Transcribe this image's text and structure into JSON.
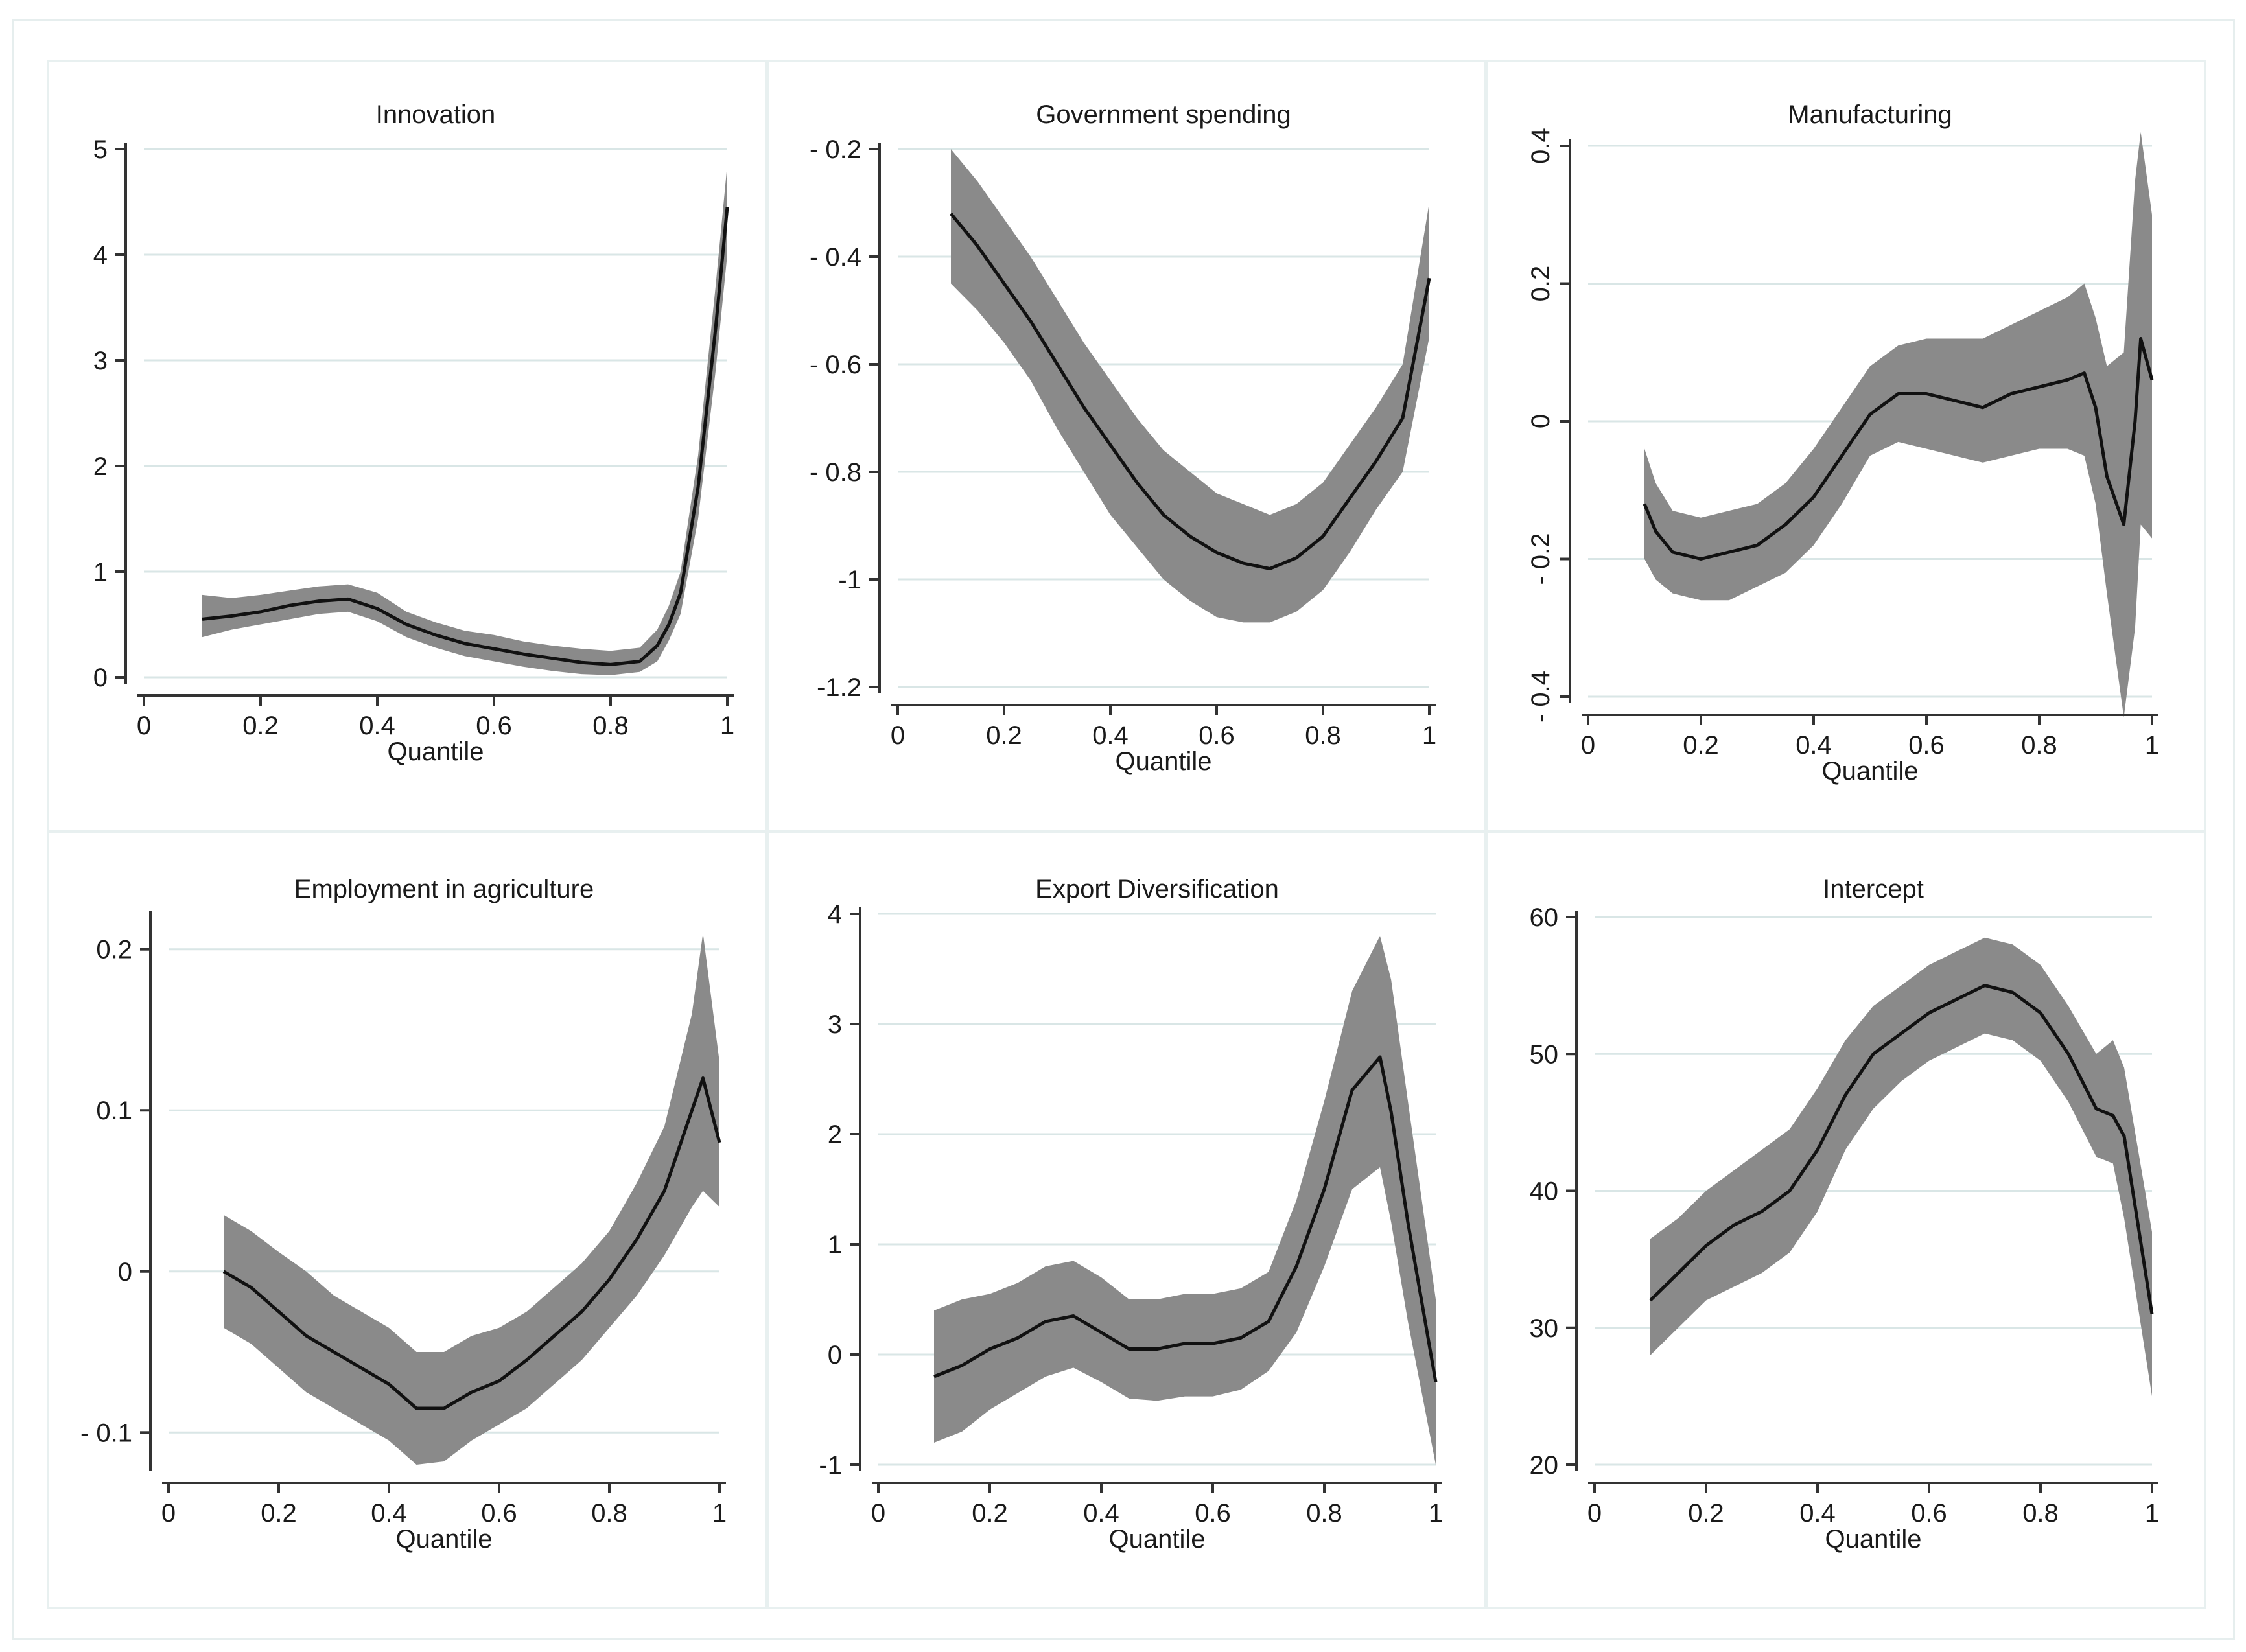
{
  "colors": {
    "band": "#8a8a8a",
    "line": "#111111",
    "axis": "#333333",
    "grid": "#d9e6e6",
    "panel_border": "#e8f0f0"
  },
  "chart_data": [
    {
      "type": "area",
      "title": "Innovation",
      "xlabel": "Quantile",
      "xlim": [
        0,
        1
      ],
      "ylim": [
        0,
        5
      ],
      "xticks": [
        0,
        0.2,
        0.4,
        0.6,
        0.8,
        1
      ],
      "xtick_labels": [
        "0",
        "0.2",
        "0.4",
        "0.6",
        "0.8",
        "1"
      ],
      "yticks": [
        0,
        1,
        2,
        3,
        4,
        5
      ],
      "ytick_labels": [
        "0",
        "1",
        "2",
        "3",
        "4",
        "5"
      ],
      "ytick_rotated": false,
      "series": [
        {
          "name": "estimate",
          "x": [
            0.1,
            0.15,
            0.2,
            0.25,
            0.3,
            0.35,
            0.4,
            0.45,
            0.5,
            0.55,
            0.6,
            0.65,
            0.7,
            0.75,
            0.8,
            0.85,
            0.88,
            0.9,
            0.92,
            0.95,
            0.98,
            1.0
          ],
          "y": [
            0.55,
            0.58,
            0.62,
            0.68,
            0.72,
            0.74,
            0.65,
            0.5,
            0.4,
            0.32,
            0.27,
            0.22,
            0.18,
            0.14,
            0.12,
            0.15,
            0.3,
            0.5,
            0.8,
            1.8,
            3.3,
            4.45
          ]
        },
        {
          "name": "lower",
          "x": [
            0.1,
            0.15,
            0.2,
            0.25,
            0.3,
            0.35,
            0.4,
            0.45,
            0.5,
            0.55,
            0.6,
            0.65,
            0.7,
            0.75,
            0.8,
            0.85,
            0.88,
            0.9,
            0.92,
            0.95,
            0.98,
            1.0
          ],
          "y": [
            0.38,
            0.45,
            0.5,
            0.55,
            0.6,
            0.62,
            0.53,
            0.38,
            0.28,
            0.2,
            0.15,
            0.1,
            0.06,
            0.03,
            0.02,
            0.05,
            0.15,
            0.35,
            0.6,
            1.5,
            2.9,
            4.0
          ]
        },
        {
          "name": "upper",
          "x": [
            0.1,
            0.15,
            0.2,
            0.25,
            0.3,
            0.35,
            0.4,
            0.45,
            0.5,
            0.55,
            0.6,
            0.65,
            0.7,
            0.75,
            0.8,
            0.85,
            0.88,
            0.9,
            0.92,
            0.95,
            0.98,
            1.0
          ],
          "y": [
            0.78,
            0.75,
            0.78,
            0.82,
            0.86,
            0.88,
            0.8,
            0.62,
            0.52,
            0.44,
            0.4,
            0.34,
            0.3,
            0.27,
            0.25,
            0.28,
            0.45,
            0.68,
            1.0,
            2.1,
            3.7,
            4.85
          ]
        }
      ]
    },
    {
      "type": "area",
      "title": "Government spending",
      "xlabel": "Quantile",
      "xlim": [
        0,
        1
      ],
      "ylim": [
        -1.2,
        -0.2
      ],
      "xticks": [
        0,
        0.2,
        0.4,
        0.6,
        0.8,
        1
      ],
      "xtick_labels": [
        "0",
        "0.2",
        "0.4",
        "0.6",
        "0.8",
        "1"
      ],
      "yticks": [
        -1.2,
        -1,
        -0.8,
        -0.6,
        -0.4,
        -0.2
      ],
      "ytick_labels": [
        "-1.2",
        "-1",
        "- 0.8",
        "- 0.6",
        "- 0.4",
        "- 0.2"
      ],
      "ytick_rotated": false,
      "series": [
        {
          "name": "estimate",
          "x": [
            0.1,
            0.15,
            0.2,
            0.25,
            0.3,
            0.35,
            0.4,
            0.45,
            0.5,
            0.55,
            0.6,
            0.65,
            0.7,
            0.75,
            0.8,
            0.85,
            0.9,
            0.95,
            1.0
          ],
          "y": [
            -0.32,
            -0.38,
            -0.45,
            -0.52,
            -0.6,
            -0.68,
            -0.75,
            -0.82,
            -0.88,
            -0.92,
            -0.95,
            -0.97,
            -0.98,
            -0.96,
            -0.92,
            -0.85,
            -0.78,
            -0.7,
            -0.44
          ]
        },
        {
          "name": "lower",
          "x": [
            0.1,
            0.15,
            0.2,
            0.25,
            0.3,
            0.35,
            0.4,
            0.45,
            0.5,
            0.55,
            0.6,
            0.65,
            0.7,
            0.75,
            0.8,
            0.85,
            0.9,
            0.95,
            1.0
          ],
          "y": [
            -0.45,
            -0.5,
            -0.56,
            -0.63,
            -0.72,
            -0.8,
            -0.88,
            -0.94,
            -1.0,
            -1.04,
            -1.07,
            -1.08,
            -1.08,
            -1.06,
            -1.02,
            -0.95,
            -0.87,
            -0.8,
            -0.55
          ]
        },
        {
          "name": "upper",
          "x": [
            0.1,
            0.15,
            0.2,
            0.25,
            0.3,
            0.35,
            0.4,
            0.45,
            0.5,
            0.55,
            0.6,
            0.65,
            0.7,
            0.75,
            0.8,
            0.85,
            0.9,
            0.95,
            1.0
          ],
          "y": [
            -0.2,
            -0.26,
            -0.33,
            -0.4,
            -0.48,
            -0.56,
            -0.63,
            -0.7,
            -0.76,
            -0.8,
            -0.84,
            -0.86,
            -0.88,
            -0.86,
            -0.82,
            -0.75,
            -0.68,
            -0.6,
            -0.3
          ]
        }
      ]
    },
    {
      "type": "area",
      "title": "Manufacturing",
      "xlabel": "Quantile",
      "xlim": [
        0,
        1
      ],
      "ylim": [
        -0.4,
        0.4
      ],
      "xticks": [
        0,
        0.2,
        0.4,
        0.6,
        0.8,
        1
      ],
      "xtick_labels": [
        "0",
        "0.2",
        "0.4",
        "0.6",
        "0.8",
        "1"
      ],
      "yticks": [
        -0.4,
        -0.2,
        0,
        0.2,
        0.4
      ],
      "ytick_labels": [
        "- 0.4",
        "- 0.2",
        "0",
        "0.2",
        "0.4"
      ],
      "ytick_rotated": true,
      "series": [
        {
          "name": "estimate",
          "x": [
            0.1,
            0.12,
            0.15,
            0.2,
            0.25,
            0.3,
            0.35,
            0.4,
            0.45,
            0.5,
            0.55,
            0.6,
            0.65,
            0.7,
            0.75,
            0.8,
            0.85,
            0.88,
            0.9,
            0.92,
            0.95,
            0.97,
            0.98,
            1.0
          ],
          "y": [
            -0.12,
            -0.16,
            -0.19,
            -0.2,
            -0.19,
            -0.18,
            -0.15,
            -0.11,
            -0.05,
            0.01,
            0.04,
            0.04,
            0.03,
            0.02,
            0.04,
            0.05,
            0.06,
            0.07,
            0.02,
            -0.08,
            -0.15,
            0.0,
            0.12,
            0.06
          ]
        },
        {
          "name": "lower",
          "x": [
            0.1,
            0.12,
            0.15,
            0.2,
            0.25,
            0.3,
            0.35,
            0.4,
            0.45,
            0.5,
            0.55,
            0.6,
            0.65,
            0.7,
            0.75,
            0.8,
            0.85,
            0.88,
            0.9,
            0.92,
            0.95,
            0.97,
            0.98,
            1.0
          ],
          "y": [
            -0.2,
            -0.23,
            -0.25,
            -0.26,
            -0.26,
            -0.24,
            -0.22,
            -0.18,
            -0.12,
            -0.05,
            -0.03,
            -0.04,
            -0.05,
            -0.06,
            -0.05,
            -0.04,
            -0.04,
            -0.05,
            -0.12,
            -0.25,
            -0.43,
            -0.3,
            -0.15,
            -0.17
          ]
        },
        {
          "name": "upper",
          "x": [
            0.1,
            0.12,
            0.15,
            0.2,
            0.25,
            0.3,
            0.35,
            0.4,
            0.45,
            0.5,
            0.55,
            0.6,
            0.65,
            0.7,
            0.75,
            0.8,
            0.85,
            0.88,
            0.9,
            0.92,
            0.95,
            0.97,
            0.98,
            1.0
          ],
          "y": [
            -0.04,
            -0.09,
            -0.13,
            -0.14,
            -0.13,
            -0.12,
            -0.09,
            -0.04,
            0.02,
            0.08,
            0.11,
            0.12,
            0.12,
            0.12,
            0.14,
            0.16,
            0.18,
            0.2,
            0.15,
            0.08,
            0.1,
            0.35,
            0.42,
            0.3
          ]
        }
      ]
    },
    {
      "type": "area",
      "title": "Employment in agriculture",
      "xlabel": "Quantile",
      "xlim": [
        0,
        1
      ],
      "ylim": [
        -0.12,
        0.22
      ],
      "xticks": [
        0,
        0.2,
        0.4,
        0.6,
        0.8,
        1
      ],
      "xtick_labels": [
        "0",
        "0.2",
        "0.4",
        "0.6",
        "0.8",
        "1"
      ],
      "yticks": [
        -0.1,
        0,
        0.1,
        0.2
      ],
      "ytick_labels": [
        "- 0.1",
        "0",
        "0.1",
        "0.2"
      ],
      "ytick_rotated": false,
      "series": [
        {
          "name": "estimate",
          "x": [
            0.1,
            0.15,
            0.2,
            0.25,
            0.3,
            0.35,
            0.4,
            0.45,
            0.5,
            0.55,
            0.6,
            0.65,
            0.7,
            0.75,
            0.8,
            0.85,
            0.9,
            0.95,
            0.97,
            1.0
          ],
          "y": [
            0.0,
            -0.01,
            -0.025,
            -0.04,
            -0.05,
            -0.06,
            -0.07,
            -0.085,
            -0.085,
            -0.075,
            -0.068,
            -0.055,
            -0.04,
            -0.025,
            -0.005,
            0.02,
            0.05,
            0.1,
            0.12,
            0.08
          ]
        },
        {
          "name": "lower",
          "x": [
            0.1,
            0.15,
            0.2,
            0.25,
            0.3,
            0.35,
            0.4,
            0.45,
            0.5,
            0.55,
            0.6,
            0.65,
            0.7,
            0.75,
            0.8,
            0.85,
            0.9,
            0.95,
            0.97,
            1.0
          ],
          "y": [
            -0.035,
            -0.045,
            -0.06,
            -0.075,
            -0.085,
            -0.095,
            -0.105,
            -0.12,
            -0.118,
            -0.105,
            -0.095,
            -0.085,
            -0.07,
            -0.055,
            -0.035,
            -0.015,
            0.01,
            0.04,
            0.05,
            0.04
          ]
        },
        {
          "name": "upper",
          "x": [
            0.1,
            0.15,
            0.2,
            0.25,
            0.3,
            0.35,
            0.4,
            0.45,
            0.5,
            0.55,
            0.6,
            0.65,
            0.7,
            0.75,
            0.8,
            0.85,
            0.9,
            0.95,
            0.97,
            1.0
          ],
          "y": [
            0.035,
            0.025,
            0.012,
            0.0,
            -0.015,
            -0.025,
            -0.035,
            -0.05,
            -0.05,
            -0.04,
            -0.035,
            -0.025,
            -0.01,
            0.005,
            0.025,
            0.055,
            0.09,
            0.16,
            0.21,
            0.13
          ]
        }
      ]
    },
    {
      "type": "area",
      "title": "Export Diversification",
      "xlabel": "Quantile",
      "xlim": [
        0,
        1
      ],
      "ylim": [
        -1,
        4
      ],
      "xticks": [
        0,
        0.2,
        0.4,
        0.6,
        0.8,
        1
      ],
      "xtick_labels": [
        "0",
        "0.2",
        "0.4",
        "0.6",
        "0.8",
        "1"
      ],
      "yticks": [
        -1,
        0,
        1,
        2,
        3,
        4
      ],
      "ytick_labels": [
        "-1",
        "0",
        "1",
        "2",
        "3",
        "4"
      ],
      "ytick_rotated": false,
      "series": [
        {
          "name": "estimate",
          "x": [
            0.1,
            0.15,
            0.2,
            0.25,
            0.3,
            0.35,
            0.4,
            0.45,
            0.5,
            0.55,
            0.6,
            0.65,
            0.7,
            0.75,
            0.8,
            0.85,
            0.9,
            0.92,
            0.95,
            1.0
          ],
          "y": [
            -0.2,
            -0.1,
            0.05,
            0.15,
            0.3,
            0.35,
            0.2,
            0.05,
            0.05,
            0.1,
            0.1,
            0.15,
            0.3,
            0.8,
            1.5,
            2.4,
            2.7,
            2.2,
            1.2,
            -0.25
          ]
        },
        {
          "name": "lower",
          "x": [
            0.1,
            0.15,
            0.2,
            0.25,
            0.3,
            0.35,
            0.4,
            0.45,
            0.5,
            0.55,
            0.6,
            0.65,
            0.7,
            0.75,
            0.8,
            0.85,
            0.9,
            0.92,
            0.95,
            1.0
          ],
          "y": [
            -0.8,
            -0.7,
            -0.5,
            -0.35,
            -0.2,
            -0.12,
            -0.25,
            -0.4,
            -0.42,
            -0.38,
            -0.38,
            -0.32,
            -0.15,
            0.2,
            0.8,
            1.5,
            1.7,
            1.2,
            0.3,
            -1.0
          ]
        },
        {
          "name": "upper",
          "x": [
            0.1,
            0.15,
            0.2,
            0.25,
            0.3,
            0.35,
            0.4,
            0.45,
            0.5,
            0.55,
            0.6,
            0.65,
            0.7,
            0.75,
            0.8,
            0.85,
            0.9,
            0.92,
            0.95,
            1.0
          ],
          "y": [
            0.4,
            0.5,
            0.55,
            0.65,
            0.8,
            0.85,
            0.7,
            0.5,
            0.5,
            0.55,
            0.55,
            0.6,
            0.75,
            1.4,
            2.3,
            3.3,
            3.8,
            3.4,
            2.3,
            0.5
          ]
        }
      ]
    },
    {
      "type": "area",
      "title": "Intercept",
      "xlabel": "Quantile",
      "xlim": [
        0,
        1
      ],
      "ylim": [
        20,
        60
      ],
      "xticks": [
        0,
        0.2,
        0.4,
        0.6,
        0.8,
        1
      ],
      "xtick_labels": [
        "0",
        "0.2",
        "0.4",
        "0.6",
        "0.8",
        "1"
      ],
      "yticks": [
        20,
        30,
        40,
        50,
        60
      ],
      "ytick_labels": [
        "20",
        "30",
        "40",
        "50",
        "60"
      ],
      "ytick_rotated": false,
      "series": [
        {
          "name": "estimate",
          "x": [
            0.1,
            0.15,
            0.2,
            0.25,
            0.3,
            0.35,
            0.4,
            0.45,
            0.5,
            0.55,
            0.6,
            0.65,
            0.7,
            0.75,
            0.8,
            0.85,
            0.9,
            0.93,
            0.95,
            1.0
          ],
          "y": [
            32,
            34,
            36,
            37.5,
            38.5,
            40,
            43,
            47,
            50,
            51.5,
            53,
            54,
            55,
            54.5,
            53,
            50,
            46,
            45.5,
            44,
            31
          ]
        },
        {
          "name": "lower",
          "x": [
            0.1,
            0.15,
            0.2,
            0.25,
            0.3,
            0.35,
            0.4,
            0.45,
            0.5,
            0.55,
            0.6,
            0.65,
            0.7,
            0.75,
            0.8,
            0.85,
            0.9,
            0.93,
            0.95,
            1.0
          ],
          "y": [
            28,
            30,
            32,
            33,
            34,
            35.5,
            38.5,
            43,
            46,
            48,
            49.5,
            50.5,
            51.5,
            51,
            49.5,
            46.5,
            42.5,
            42,
            38,
            25
          ]
        },
        {
          "name": "upper",
          "x": [
            0.1,
            0.15,
            0.2,
            0.25,
            0.3,
            0.35,
            0.4,
            0.45,
            0.5,
            0.55,
            0.6,
            0.65,
            0.7,
            0.75,
            0.8,
            0.85,
            0.9,
            0.93,
            0.95,
            1.0
          ],
          "y": [
            36.5,
            38,
            40,
            41.5,
            43,
            44.5,
            47.5,
            51,
            53.5,
            55,
            56.5,
            57.5,
            58.5,
            58,
            56.5,
            53.5,
            50,
            51,
            49,
            37
          ]
        }
      ]
    }
  ]
}
